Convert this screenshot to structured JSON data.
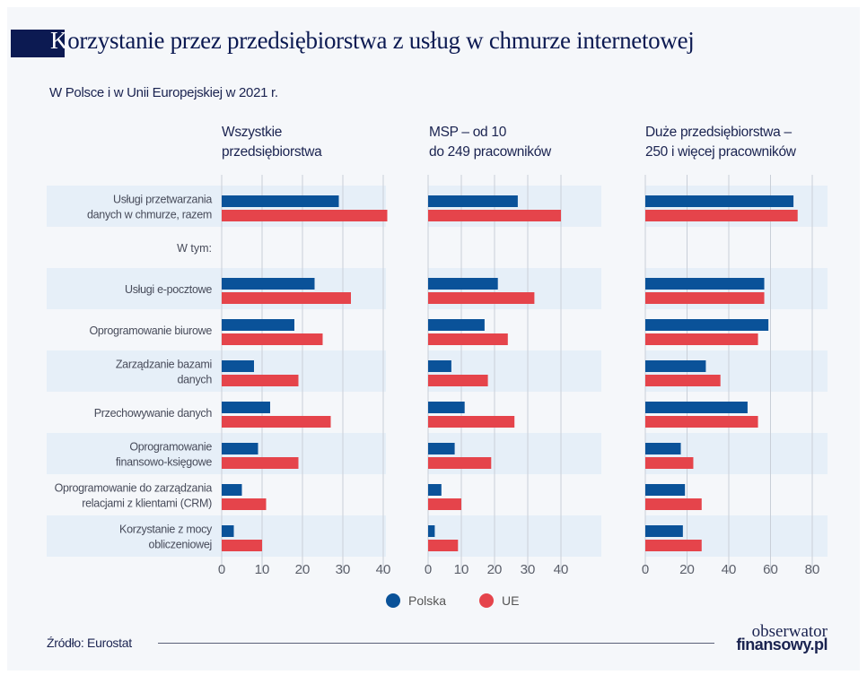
{
  "title_first_letter": "K",
  "title_rest": "orzystanie przez przedsiębiorstwa z usług w chmurze internetowej",
  "subtitle": "W Polsce i w Unii Europejskiej w 2021 r.",
  "source": "Źródło: Eurostat",
  "logo": {
    "line1": "obserwator",
    "line2": "finansowy.pl"
  },
  "colors": {
    "polska": "#0a5299",
    "ue": "#e5444b",
    "band": "#e6eff8",
    "background": "#f5f7fa",
    "title_block": "#0c1a52"
  },
  "legend": [
    {
      "label": "Polska",
      "color": "#0a5299"
    },
    {
      "label": "UE",
      "color": "#e5444b"
    }
  ],
  "chart_data": {
    "type": "bar",
    "orientation": "horizontal",
    "categories": [
      "Usługi przetwarzania danych w chmurze, razem",
      "Usługi e-pocztowe",
      "Oprogramowanie biurowe",
      "Zarządzanie bazami danych",
      "Przechowywanie danych",
      "Oprogramowanie finansowo-księgowe",
      "Oprogramowanie do zarządzania relacjami z klientami (CRM)",
      "Korzystanie z mocy obliczeniowej"
    ],
    "category_lines": [
      [
        "Usługi przetwarzania",
        "danych w chmurze, razem"
      ],
      [
        "Usługi e-pocztowe"
      ],
      [
        "Oprogramowanie biurowe"
      ],
      [
        "Zarządzanie bazami",
        "danych"
      ],
      [
        "Przechowywanie danych"
      ],
      [
        "Oprogramowanie",
        "finansowo-księgowe"
      ],
      [
        "Oprogramowanie do zarządzania",
        "relacjami z klientami (CRM)"
      ],
      [
        "Korzystanie z mocy",
        "obliczeniowej"
      ]
    ],
    "group_label": "W tym:",
    "legend_placement": "bottom",
    "grid": true,
    "panels": [
      {
        "title": [
          "Wszystkie",
          "przedsiębiorstwa"
        ],
        "xlim": [
          0,
          40
        ],
        "ticks": [
          0,
          10,
          20,
          30,
          40
        ],
        "series": [
          {
            "name": "Polska",
            "values": [
              29,
              23,
              18,
              8,
              12,
              9,
              5,
              3
            ]
          },
          {
            "name": "UE",
            "values": [
              41,
              32,
              25,
              19,
              27,
              19,
              11,
              10
            ]
          }
        ]
      },
      {
        "title": [
          "MSP – od 10",
          "do 249 pracowników"
        ],
        "xlim": [
          0,
          40
        ],
        "ticks": [
          0,
          10,
          20,
          30,
          40
        ],
        "series": [
          {
            "name": "Polska",
            "values": [
              27,
              21,
              17,
              7,
              11,
              8,
              4,
              2
            ]
          },
          {
            "name": "UE",
            "values": [
              40,
              32,
              24,
              18,
              26,
              19,
              10,
              9
            ]
          }
        ]
      },
      {
        "title": [
          "Duże przedsiębiorstwa –",
          "250 i więcej pracowników"
        ],
        "xlim": [
          0,
          80
        ],
        "ticks": [
          0,
          20,
          40,
          60,
          80
        ],
        "series": [
          {
            "name": "Polska",
            "values": [
              71,
              57,
              59,
              29,
              49,
              17,
              19,
              18
            ]
          },
          {
            "name": "UE",
            "values": [
              73,
              57,
              54,
              36,
              54,
              23,
              27,
              27
            ]
          }
        ]
      }
    ]
  }
}
